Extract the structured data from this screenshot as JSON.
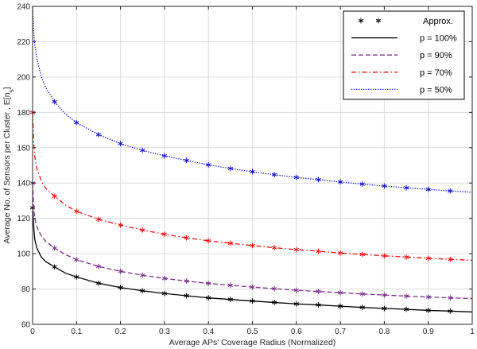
{
  "chart_data": {
    "type": "line",
    "xlabel": "Average APs' Coverage Radius (Normalized)",
    "ylabel": "Average No. of Sensors per Cluster , E[n",
    "ylabel_sub": "s",
    "ylabel_end": "]",
    "xlim": [
      0,
      1
    ],
    "ylim": [
      60,
      240
    ],
    "xticks": [
      0,
      0.1,
      0.2,
      0.3,
      0.4,
      0.5,
      0.6,
      0.7,
      0.8,
      0.9,
      1
    ],
    "xtick_labels": [
      "0",
      "0.1",
      "0.2",
      "0.3",
      "0.4",
      "0.5",
      "0.6",
      "0.7",
      "0.8",
      "0.9",
      "1"
    ],
    "yticks": [
      60,
      80,
      100,
      120,
      140,
      160,
      180,
      200,
      220,
      240
    ],
    "ytick_labels": [
      "60",
      "80",
      "100",
      "120",
      "140",
      "160",
      "180",
      "200",
      "220",
      "240"
    ],
    "grid": true,
    "legend_position": "top-right",
    "approx_label": "Approx.",
    "series": [
      {
        "name": "p = 100%",
        "color": "#000000",
        "dash": "solid",
        "x": [
          0.0,
          0.002,
          0.005,
          0.01,
          0.02,
          0.03,
          0.05,
          0.075,
          0.1,
          0.15,
          0.2,
          0.25,
          0.3,
          0.35,
          0.4,
          0.45,
          0.5,
          0.55,
          0.6,
          0.65,
          0.7,
          0.75,
          0.8,
          0.85,
          0.9,
          0.95,
          1.0
        ],
        "y": [
          126,
          117,
          108,
          103,
          98,
          95.5,
          92.5,
          89,
          86.8,
          83.3,
          80.8,
          79.0,
          77.5,
          76.2,
          75.0,
          74.1,
          73.2,
          72.4,
          71.6,
          71.0,
          70.3,
          69.6,
          69.0,
          68.5,
          67.9,
          67.5,
          67.0
        ],
        "approx_x": [
          0.0,
          0.05,
          0.1,
          0.15,
          0.2,
          0.25,
          0.3,
          0.35,
          0.4,
          0.45,
          0.5,
          0.55,
          0.6,
          0.65,
          0.7,
          0.75,
          0.8,
          0.85,
          0.9,
          0.95
        ],
        "approx_y": [
          126,
          92.5,
          86.8,
          83.3,
          80.8,
          79.0,
          77.5,
          76.2,
          75.0,
          74.1,
          73.2,
          72.4,
          71.6,
          71.0,
          70.3,
          69.6,
          69.0,
          68.5,
          67.9,
          67.5
        ],
        "approx_color": "#000000"
      },
      {
        "name": "p = 90%",
        "color": "#7e2f8e",
        "dash": "dashed",
        "x": [
          0.0,
          0.002,
          0.005,
          0.01,
          0.02,
          0.03,
          0.05,
          0.075,
          0.1,
          0.15,
          0.2,
          0.25,
          0.3,
          0.35,
          0.4,
          0.45,
          0.5,
          0.55,
          0.6,
          0.65,
          0.7,
          0.75,
          0.8,
          0.85,
          0.9,
          0.95,
          1.0
        ],
        "y": [
          140,
          128,
          120,
          115,
          110,
          107,
          103.2,
          99.5,
          96.6,
          92.8,
          90.0,
          87.8,
          86.0,
          84.5,
          83.2,
          82.1,
          81.1,
          80.2,
          79.3,
          78.6,
          77.9,
          77.2,
          76.6,
          76.0,
          75.5,
          75.0,
          74.6
        ],
        "approx_x": [
          0.0,
          0.05,
          0.1,
          0.15,
          0.2,
          0.25,
          0.3,
          0.35,
          0.4,
          0.45,
          0.5,
          0.55,
          0.6,
          0.65,
          0.7,
          0.75,
          0.8,
          0.85,
          0.9,
          0.95
        ],
        "approx_y": [
          140,
          103.2,
          96.6,
          92.8,
          90.0,
          87.8,
          86.0,
          84.5,
          83.2,
          82.1,
          81.1,
          80.2,
          79.3,
          78.6,
          77.9,
          77.2,
          76.6,
          76.0,
          75.5,
          75.0
        ],
        "approx_color": "#7e2f8e"
      },
      {
        "name": "p = 70%",
        "color": "#ee1111",
        "dash": "dashdot",
        "x": [
          0.0,
          0.002,
          0.005,
          0.01,
          0.02,
          0.03,
          0.05,
          0.075,
          0.1,
          0.15,
          0.2,
          0.25,
          0.3,
          0.35,
          0.4,
          0.45,
          0.5,
          0.55,
          0.6,
          0.65,
          0.7,
          0.75,
          0.8,
          0.85,
          0.9,
          0.95,
          1.0
        ],
        "y": [
          180,
          165,
          155,
          148,
          141,
          137,
          132.5,
          127.5,
          124.0,
          119.5,
          116.2,
          113.4,
          111.0,
          109.0,
          107.3,
          105.9,
          104.6,
          103.4,
          102.3,
          101.4,
          100.4,
          99.6,
          98.8,
          98.1,
          97.4,
          96.8,
          96.3
        ],
        "approx_x": [
          0.0,
          0.05,
          0.1,
          0.15,
          0.2,
          0.25,
          0.3,
          0.35,
          0.4,
          0.45,
          0.5,
          0.55,
          0.6,
          0.65,
          0.7,
          0.75,
          0.8,
          0.85,
          0.9,
          0.95
        ],
        "approx_y": [
          180,
          132.5,
          124.0,
          119.5,
          116.2,
          113.4,
          111.0,
          109.0,
          107.3,
          105.9,
          104.6,
          103.4,
          102.3,
          101.4,
          100.4,
          99.6,
          98.8,
          98.1,
          97.4,
          96.8
        ],
        "approx_color": "#ee1111"
      },
      {
        "name": "p = 50%",
        "color": "#1111cc",
        "dash": "dotted",
        "x": [
          0.0,
          0.002,
          0.005,
          0.01,
          0.02,
          0.03,
          0.05,
          0.075,
          0.1,
          0.15,
          0.2,
          0.25,
          0.3,
          0.35,
          0.4,
          0.45,
          0.5,
          0.55,
          0.6,
          0.65,
          0.7,
          0.75,
          0.8,
          0.85,
          0.9,
          0.95,
          1.0
        ],
        "y": [
          240,
          228,
          218,
          210,
          200,
          194,
          186.0,
          179.0,
          174.2,
          167.4,
          162.3,
          158.5,
          155.4,
          152.8,
          150.3,
          148.2,
          146.4,
          144.7,
          143.2,
          141.9,
          140.6,
          139.4,
          138.3,
          137.3,
          136.4,
          135.5,
          134.8
        ],
        "approx_x": [
          0.05,
          0.1,
          0.15,
          0.2,
          0.25,
          0.3,
          0.35,
          0.4,
          0.45,
          0.5,
          0.55,
          0.6,
          0.65,
          0.7,
          0.75,
          0.8,
          0.85,
          0.9,
          0.95
        ],
        "approx_y": [
          186.0,
          174.2,
          167.4,
          162.3,
          158.5,
          155.4,
          152.8,
          150.3,
          148.2,
          146.4,
          144.7,
          143.2,
          141.9,
          140.6,
          139.4,
          138.3,
          137.3,
          136.4,
          135.5
        ],
        "approx_color": "#1111cc"
      }
    ]
  }
}
